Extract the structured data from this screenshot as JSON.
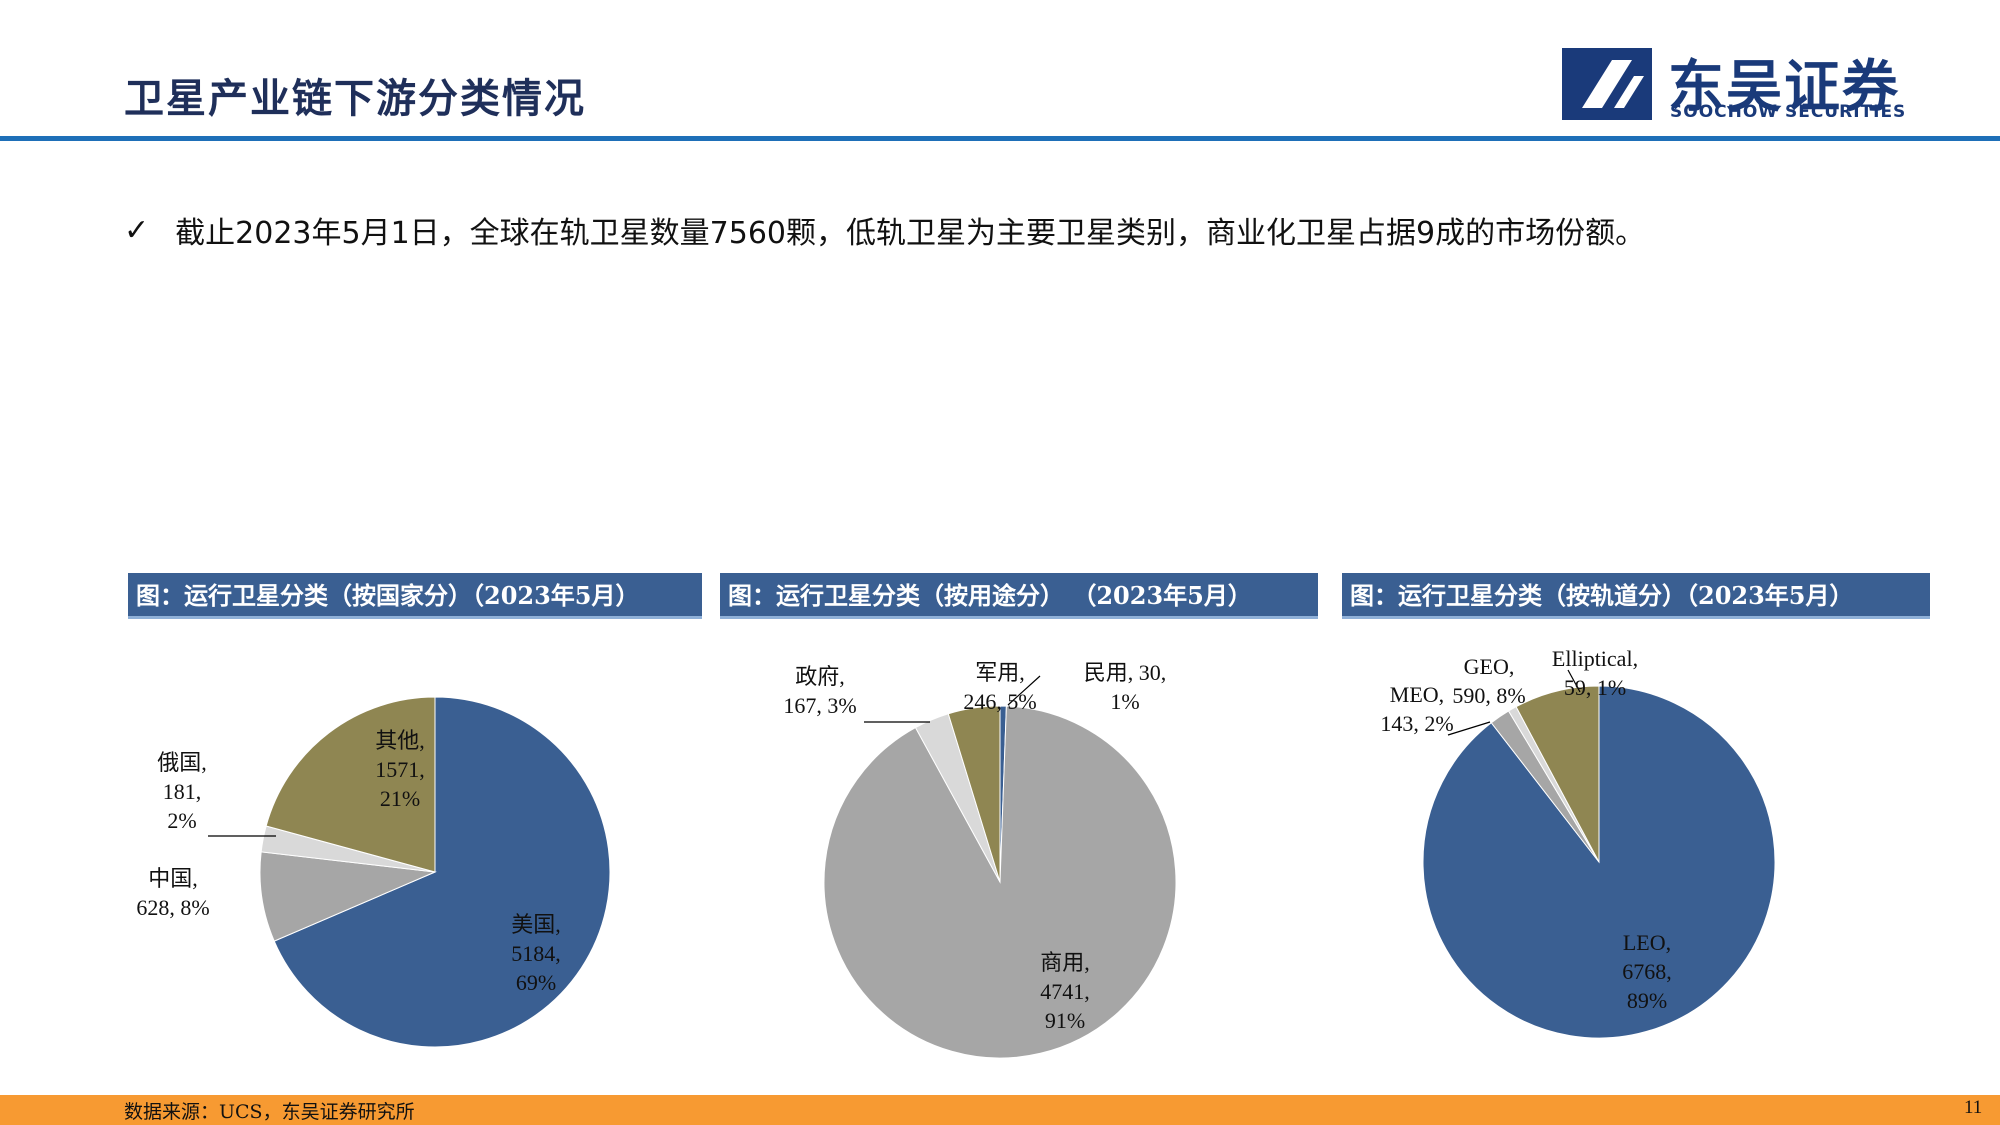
{
  "header": {
    "title": "卫星产业链下游分类情况",
    "brand_cn": "东吴证券",
    "brand_en": "SOOCHOW SECURITIES"
  },
  "bullet": {
    "text": "截止2023年5月1日，全球在轨卫星数量7560颗，低轨卫星为主要卫星类别，商业化卫星占据9成的市场份额。"
  },
  "colors": {
    "accent": "#1e6fb8",
    "footer": "#f79a32",
    "title_bar": "#3a5f92",
    "blue": "#3a5f92",
    "gray": "#a6a6a6",
    "light": "#d9d9d9",
    "olive": "#8f8652"
  },
  "figures": [
    {
      "title": "图：运行卫星分类（按国家分）（2023年5月）"
    },
    {
      "title": "图：运行卫星分类（按用途分）  （2023年5月）"
    },
    {
      "title": "图：运行卫星分类（按轨道分）（2023年5月）"
    }
  ],
  "chart_data": [
    {
      "type": "pie",
      "title": "图：运行卫星分类（按国家分）（2023年5月）",
      "slices": [
        {
          "name": "美国",
          "value": 5184,
          "pct": "69%",
          "color": "#3a5f92",
          "label_lines": [
            "美国,",
            "5184,",
            "69%"
          ]
        },
        {
          "name": "中国",
          "value": 628,
          "pct": "8%",
          "color": "#a6a6a6",
          "label_lines": [
            "中国,",
            "628, 8%"
          ]
        },
        {
          "name": "俄国",
          "value": 181,
          "pct": "2%",
          "color": "#d9d9d9",
          "label_lines": [
            "俄国,",
            "181,",
            "2%"
          ]
        },
        {
          "name": "其他",
          "value": 1571,
          "pct": "21%",
          "color": "#8f8652",
          "label_lines": [
            "其他,",
            "1571,",
            "21%"
          ]
        }
      ]
    },
    {
      "type": "pie",
      "title": "图：运行卫星分类（按用途分）  （2023年5月）",
      "slices": [
        {
          "name": "民用",
          "value": 30,
          "pct": "1%",
          "color": "#3a5f92",
          "label_lines": [
            "民用, 30,",
            "1%"
          ]
        },
        {
          "name": "商用",
          "value": 4741,
          "pct": "91%",
          "color": "#a6a6a6",
          "label_lines": [
            "商用,",
            "4741,",
            "91%"
          ]
        },
        {
          "name": "政府",
          "value": 167,
          "pct": "3%",
          "color": "#d9d9d9",
          "label_lines": [
            "政府,",
            "167, 3%"
          ]
        },
        {
          "name": "军用",
          "value": 246,
          "pct": "5%",
          "color": "#8f8652",
          "label_lines": [
            "军用,",
            "246, 5%"
          ]
        }
      ]
    },
    {
      "type": "pie",
      "title": "图：运行卫星分类（按轨道分）（2023年5月）",
      "slices": [
        {
          "name": "LEO",
          "value": 6768,
          "pct": "89%",
          "color": "#3a5f92",
          "label_lines": [
            "LEO,",
            "6768,",
            "89%"
          ]
        },
        {
          "name": "MEO",
          "value": 143,
          "pct": "2%",
          "color": "#a6a6a6",
          "label_lines": [
            "MEO,",
            "143, 2%"
          ]
        },
        {
          "name": "Elliptical",
          "value": 59,
          "pct": "1%",
          "color": "#d9d9d9",
          "label_lines": [
            "Elliptical,",
            "59, 1%"
          ]
        },
        {
          "name": "GEO",
          "value": 590,
          "pct": "8%",
          "color": "#8f8652",
          "label_lines": [
            "GEO,",
            "590, 8%"
          ]
        }
      ]
    }
  ],
  "footer": {
    "source": "数据来源：UCS，东吴证券研究所",
    "page": "11"
  }
}
